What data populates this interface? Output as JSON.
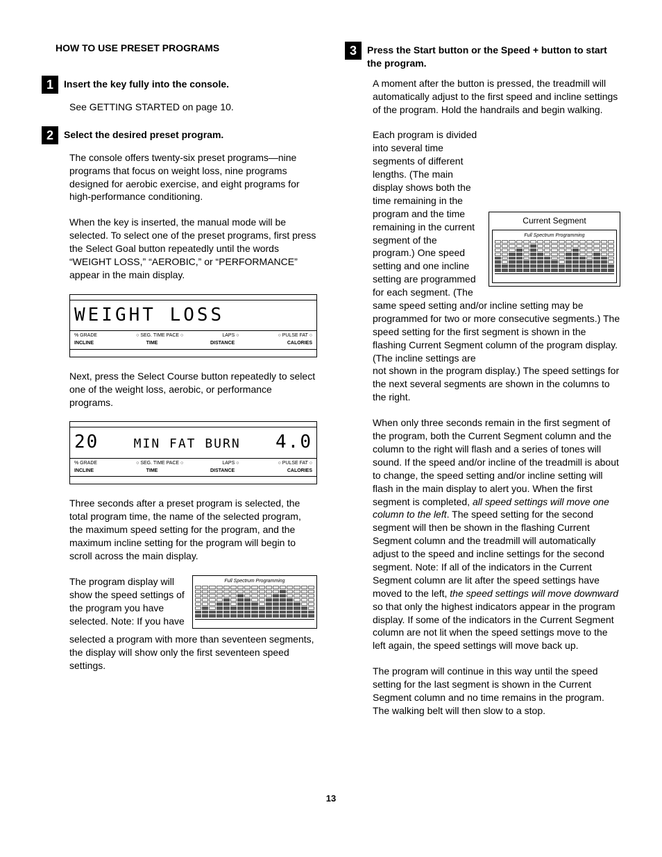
{
  "heading": "HOW TO USE PRESET PROGRAMS",
  "page_number": "13",
  "left": {
    "step1": {
      "num": "1",
      "title": "Insert the key fully into the console.",
      "p1": "See GETTING STARTED on page 10."
    },
    "step2": {
      "num": "2",
      "title": "Select the desired preset program.",
      "p1": "The console offers twenty-six preset programs—nine programs that focus on weight loss, nine programs designed for aerobic exercise, and eight programs for high-performance conditioning.",
      "p2": "When the key is inserted, the manual mode will be selected. To select one of the preset programs, first press the Select Goal button repeatedly until the words “WEIGHT LOSS,” “AEROBIC,” or “PERFORMANCE” appear in the main display.",
      "lcd1": {
        "text": "WEIGHT  LOSS",
        "labels_top": [
          "% GRADE",
          "○ SEG. TIME  PACE ○",
          "LAPS ○",
          "○ PULSE  FAT ○"
        ],
        "labels_bot": [
          "INCLINE",
          "TIME",
          "DISTANCE",
          "CALORIES"
        ]
      },
      "p3": "Next, press the Select Course button repeatedly to select one of the weight loss, aerobic, or performance programs.",
      "lcd2": {
        "left_num": "20",
        "mid": "MIN  FAT  BURN",
        "right_num": "4.0",
        "labels_top": [
          "% GRADE",
          "○ SEG. TIME  PACE ○",
          "LAPS ○",
          "○ PULSE  FAT ○"
        ],
        "labels_bot": [
          "INCLINE",
          "TIME",
          "DISTANCE",
          "CALORIES"
        ]
      },
      "p4": "Three seconds after a preset program is selected, the total program time, the name of the selected program, the maximum speed setting for the program, and the maximum incline setting for the program will begin to scroll across the main display.",
      "p5a": "The program display will show the speed settings of the program you have selected. Note: If you have ",
      "p5b": "selected a program with more than seventeen segments, the display will show only the first seventeen speed settings."
    },
    "spectrum1": {
      "title": "Full Spectrum Programming",
      "bars": [
        2,
        3,
        2,
        4,
        5,
        3,
        6,
        5,
        4,
        3,
        5,
        6,
        7,
        5,
        4,
        3,
        2
      ]
    }
  },
  "right": {
    "step3": {
      "num": "3",
      "title": "Press the Start button or the Speed + button to start the program.",
      "p1": "A moment after the button is pressed, the treadmill will automatically adjust to the first speed and incline settings of the program. Hold the handrails and begin walking.",
      "p2a": "Each program is divided into several time segments of different lengths. (The main display shows both the time remaining in the program and the time remaining in the current segment of the program.) One speed setting and one incline setting are programmed for each segment. (The same speed setting and/or incline setting may be programmed for two or more consecutive segments.) The speed setting for the first segment is shown in the flashing Current Segment column of the program display. (The incline settings are ",
      "p2b": "not shown in the program display.) The speed settings for the next several segments are shown in the columns to the right.",
      "curseg_label": "Current Segment",
      "curseg_title": "Full Spectrum Programming",
      "curseg_bars": [
        4,
        2,
        5,
        6,
        3,
        7,
        5,
        4,
        3,
        2,
        5,
        6,
        4,
        3,
        5,
        4,
        2
      ],
      "p3a": "When only three seconds remain in the first segment of the program, both the Current Segment column and the column to the right will flash and a series of tones will sound. If the speed and/or incline of the treadmill is about to change, the speed setting and/or incline setting will flash in the main display to alert you. When the first segment is completed, ",
      "p3i1": "all speed settings will move one column to the left",
      "p3b": ". The speed setting for the second segment will then be shown in the flashing Current Segment column and the treadmill will automatically adjust to the speed and incline settings for the second segment. Note: If all of the indicators in the Current Segment column are lit after the speed settings have moved to the left, ",
      "p3i2": "the speed settings will move downward",
      "p3c": " so that only the highest indicators appear in the program display. If some of the indicators in the Current Segment column are not lit when the speed settings move to the left again, the speed settings will move back up.",
      "p4": "The program will continue in this way until the speed setting for the last segment is shown in the Current Segment column and no time remains in the program. The walking belt will then slow to a stop."
    }
  }
}
